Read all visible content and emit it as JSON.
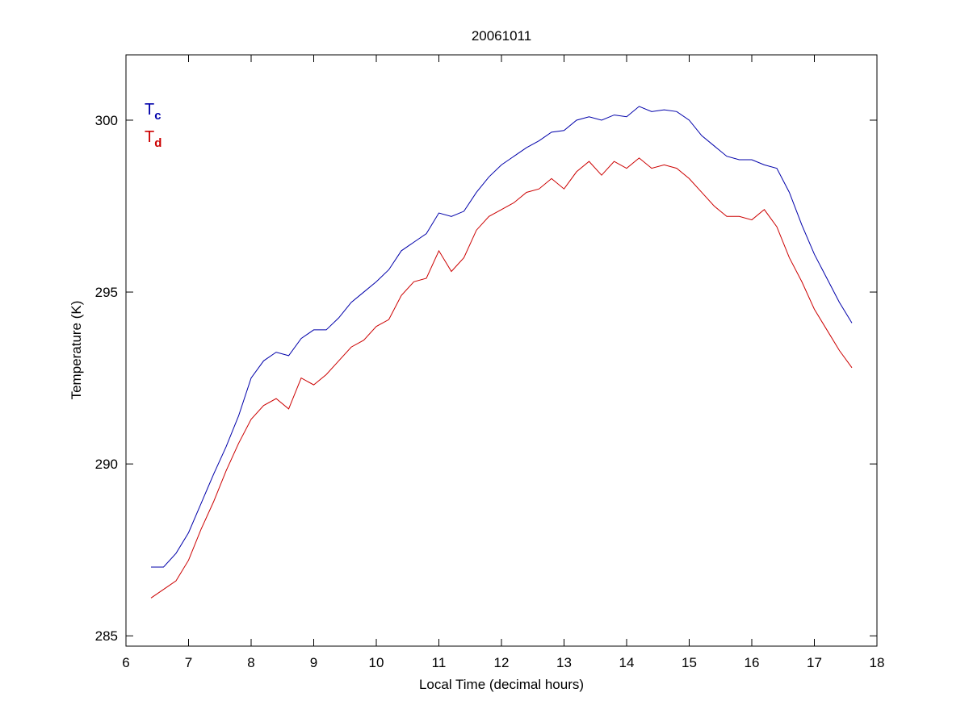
{
  "chart_data": {
    "type": "line",
    "title": "20061011",
    "x_label": "Local Time (decimal hours)",
    "y_label": "Temperature (K)",
    "xlim": [
      6,
      18
    ],
    "xticks": [
      6,
      7,
      8,
      9,
      10,
      11,
      12,
      13,
      14,
      15,
      16,
      17,
      18
    ],
    "ylim": [
      284.7,
      301.9
    ],
    "yticks": [
      285,
      290,
      295,
      300
    ],
    "grid": false,
    "legend": "upper left",
    "x": [
      6.4,
      6.6,
      6.8,
      7.0,
      7.2,
      7.4,
      7.6,
      7.8,
      8.0,
      8.2,
      8.4,
      8.6,
      8.8,
      9.0,
      9.2,
      9.4,
      9.6,
      9.8,
      10.0,
      10.2,
      10.4,
      10.6,
      10.8,
      11.0,
      11.2,
      11.4,
      11.6,
      11.8,
      12.0,
      12.2,
      12.4,
      12.6,
      12.8,
      13.0,
      13.2,
      13.4,
      13.6,
      13.8,
      14.0,
      14.2,
      14.4,
      14.6,
      14.8,
      15.0,
      15.2,
      15.4,
      15.6,
      15.8,
      16.0,
      16.2,
      16.4,
      16.6,
      16.8,
      17.0,
      17.2,
      17.4,
      17.6
    ],
    "series": [
      {
        "name": "T",
        "subscript": "c",
        "color": "#0000aa",
        "values": [
          287.0,
          287.0,
          287.4,
          288.0,
          288.85,
          289.7,
          290.5,
          291.4,
          292.5,
          293.0,
          293.25,
          293.15,
          293.65,
          293.9,
          293.9,
          294.25,
          294.7,
          295.0,
          295.3,
          295.65,
          296.2,
          296.45,
          296.7,
          297.3,
          297.2,
          297.35,
          297.9,
          298.35,
          298.7,
          298.95,
          299.2,
          299.4,
          299.65,
          299.7,
          300.0,
          300.1,
          300.0,
          300.15,
          300.1,
          300.4,
          300.25,
          300.3,
          300.25,
          300.0,
          299.55,
          299.25,
          298.95,
          298.85,
          298.85,
          298.7,
          298.6,
          297.9,
          296.95,
          296.1,
          295.4,
          294.7,
          294.1
        ]
      },
      {
        "name": "T",
        "subscript": "d",
        "color": "#cc0000",
        "values": [
          286.1,
          286.35,
          286.6,
          287.2,
          288.1,
          288.9,
          289.8,
          290.6,
          291.3,
          291.7,
          291.9,
          291.6,
          292.5,
          292.3,
          292.6,
          293.0,
          293.4,
          293.6,
          294.0,
          294.2,
          294.9,
          295.3,
          295.4,
          296.2,
          295.6,
          296.0,
          296.8,
          297.2,
          297.4,
          297.6,
          297.9,
          298.0,
          298.3,
          298.0,
          298.5,
          298.8,
          298.4,
          298.8,
          298.6,
          298.9,
          298.6,
          298.7,
          298.6,
          298.3,
          297.9,
          297.5,
          297.2,
          297.2,
          297.1,
          297.4,
          296.9,
          296.0,
          295.3,
          294.5,
          293.9,
          293.3,
          292.8
        ]
      }
    ]
  }
}
